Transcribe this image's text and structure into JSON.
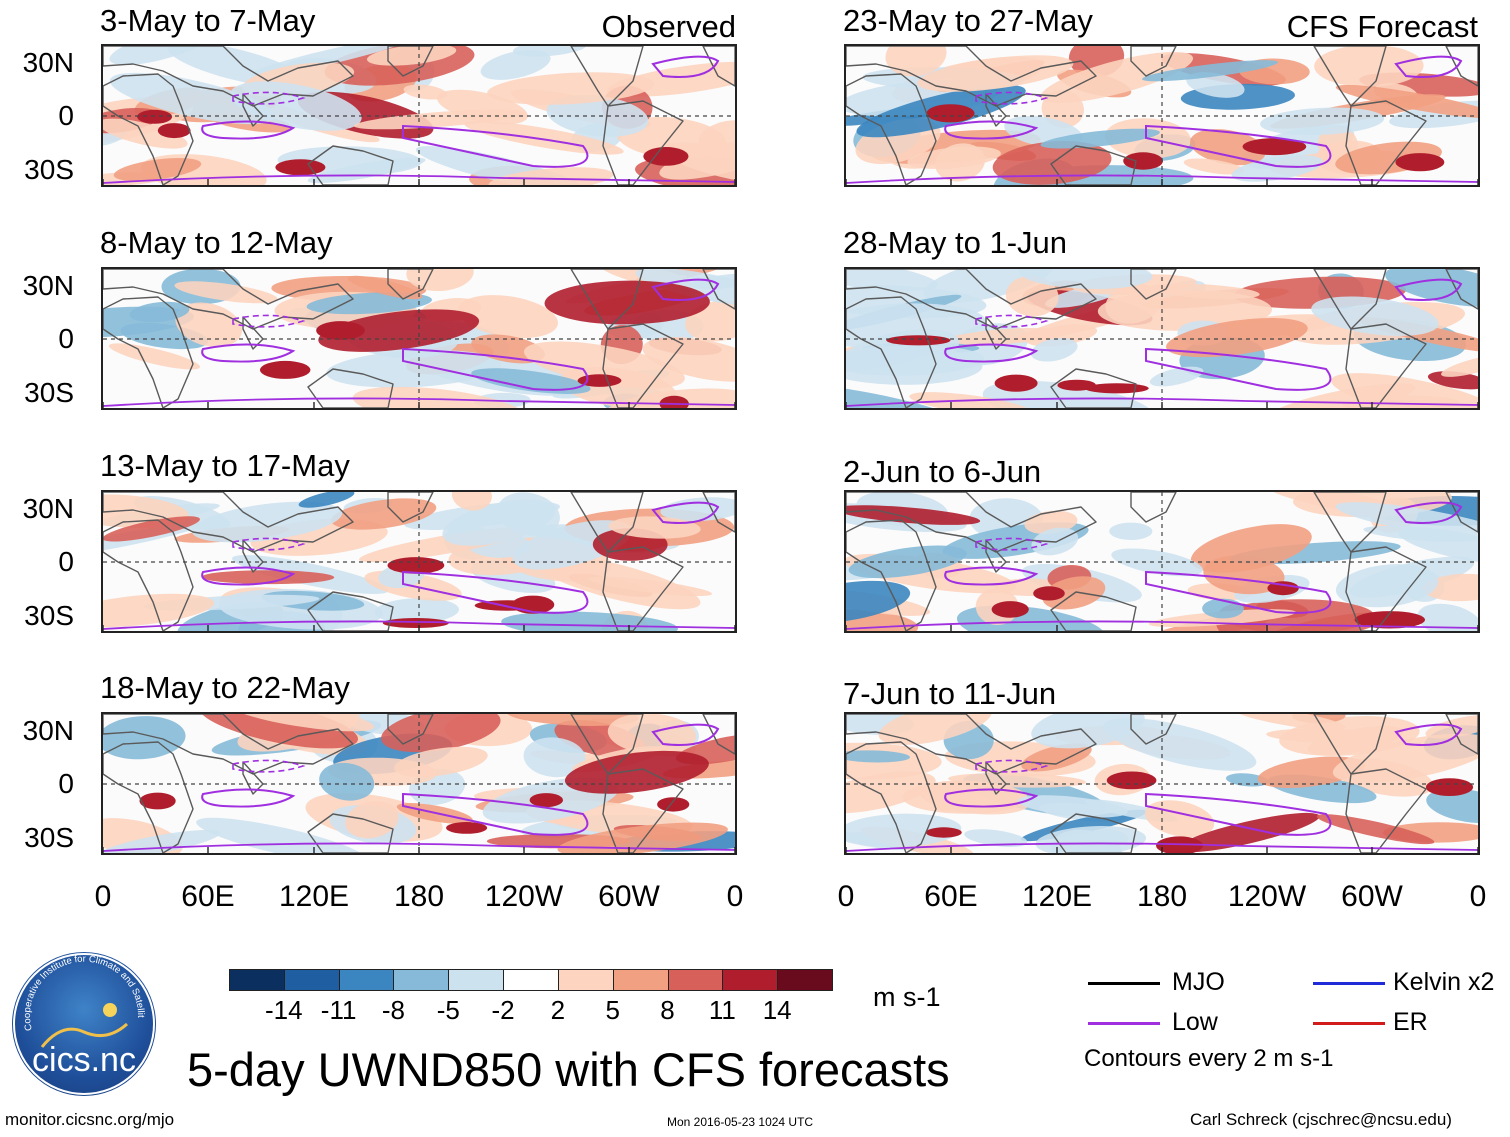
{
  "figure_title": "5-day UWND850 with CFS forecasts",
  "panel_side_labels": {
    "observed": "Observed",
    "forecast": "CFS Forecast"
  },
  "panels": [
    {
      "id": "p1",
      "period": "3-May to 7-May"
    },
    {
      "id": "p2",
      "period": "8-May to 12-May"
    },
    {
      "id": "p3",
      "period": "13-May to 17-May"
    },
    {
      "id": "p4",
      "period": "18-May to 22-May"
    },
    {
      "id": "p5",
      "period": "23-May to 27-May"
    },
    {
      "id": "p6",
      "period": "28-May to 1-Jun"
    },
    {
      "id": "p7",
      "period": "2-Jun to 6-Jun"
    },
    {
      "id": "p8",
      "period": "7-Jun to 11-Jun"
    }
  ],
  "lat_labels": [
    "30N",
    "0",
    "30S"
  ],
  "lon_labels": [
    "0",
    "60E",
    "120E",
    "180",
    "120W",
    "60W",
    "0"
  ],
  "colorbar": {
    "labels": [
      "-14",
      "-11",
      "-8",
      "-5",
      "-2",
      "2",
      "5",
      "8",
      "11",
      "14"
    ],
    "units": "m s-1",
    "colors": [
      "#0b2f5e",
      "#1f5ea0",
      "#3b86c0",
      "#86bad8",
      "#cde2ef",
      "#ffffff",
      "#fcd4bf",
      "#f2a082",
      "#d8605a",
      "#b01e2e",
      "#690b1d"
    ]
  },
  "legend": {
    "items": [
      {
        "label": "MJO",
        "color": "#000000"
      },
      {
        "label": "Kelvin x2",
        "color": "#1f2bd6"
      },
      {
        "label": "Low",
        "color": "#a02fe0"
      },
      {
        "label": "ER",
        "color": "#d21b1b"
      }
    ],
    "contour_note": "Contours every 2 m s-1"
  },
  "logo": {
    "text": "cics.nc",
    "ring_text": "Cooperative Institute for Climate and Satellites"
  },
  "footer": {
    "url": "monitor.cicsnc.org/mjo",
    "timestamp": "Mon 2016-05-23 1024 UTC",
    "credit": "Carl Schreck (cjschrec@ncsu.edu)"
  }
}
